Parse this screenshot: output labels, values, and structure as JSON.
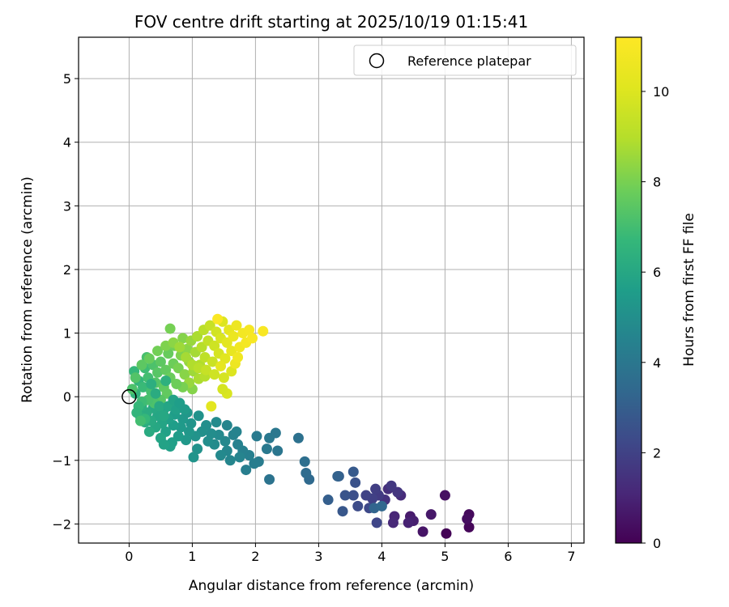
{
  "chart_data": {
    "type": "scatter",
    "title": "FOV centre drift starting at 2025/10/19 01:15:41",
    "xlabel": "Angular distance from reference (arcmin)",
    "ylabel": "Rotation from reference (arcmin)",
    "xlim": [
      -0.8,
      7.2
    ],
    "ylim": [
      -2.3,
      5.65
    ],
    "x_ticks": [
      0,
      1,
      2,
      3,
      4,
      5,
      6,
      7
    ],
    "y_ticks": [
      -2,
      -1,
      0,
      1,
      2,
      3,
      4,
      5
    ],
    "x_tick_labels": [
      "0",
      "1",
      "2",
      "3",
      "4",
      "5",
      "6",
      "7"
    ],
    "y_tick_labels": [
      "−2",
      "−1",
      "0",
      "1",
      "2",
      "3",
      "4",
      "5"
    ],
    "grid": true,
    "legend": {
      "position": "top-right",
      "entries": [
        "Reference platepar"
      ]
    },
    "reference_point": {
      "x": 0.0,
      "y": 0.0,
      "label": "Reference platepar"
    },
    "colorbar": {
      "label": "Hours from first FF file",
      "range": [
        0,
        11.2
      ],
      "ticks": [
        0,
        2,
        4,
        6,
        8,
        10
      ],
      "tick_labels": [
        "0",
        "2",
        "4",
        "6",
        "8",
        "10"
      ],
      "colormap": "viridis"
    },
    "points": [
      [
        5.02,
        -2.15,
        0.05
      ],
      [
        5.38,
        -2.05,
        0.15
      ],
      [
        5.38,
        -1.85,
        0.25
      ],
      [
        5.35,
        -1.92,
        0.35
      ],
      [
        5.0,
        -1.55,
        0.45
      ],
      [
        4.65,
        -2.12,
        0.55
      ],
      [
        4.78,
        -1.85,
        0.65
      ],
      [
        4.45,
        -1.88,
        0.75
      ],
      [
        4.5,
        -1.95,
        0.85
      ],
      [
        4.42,
        -1.98,
        0.95
      ],
      [
        4.2,
        -1.88,
        1.05
      ],
      [
        4.18,
        -1.98,
        1.15
      ],
      [
        4.3,
        -1.55,
        1.25
      ],
      [
        4.1,
        -1.45,
        1.35
      ],
      [
        4.05,
        -1.62,
        1.45
      ],
      [
        4.25,
        -1.5,
        1.55
      ],
      [
        4.15,
        -1.4,
        1.65
      ],
      [
        3.95,
        -1.55,
        1.75
      ],
      [
        3.9,
        -1.45,
        1.85
      ],
      [
        3.85,
        -1.6,
        1.95
      ],
      [
        3.75,
        -1.55,
        2.05
      ],
      [
        3.92,
        -1.98,
        2.15
      ],
      [
        3.8,
        -1.75,
        2.25
      ],
      [
        3.62,
        -1.72,
        2.35
      ],
      [
        3.55,
        -1.55,
        2.45
      ],
      [
        3.58,
        -1.35,
        2.55
      ],
      [
        3.42,
        -1.55,
        2.65
      ],
      [
        3.38,
        -1.8,
        2.75
      ],
      [
        3.55,
        -1.18,
        2.85
      ],
      [
        3.32,
        -1.25,
        2.95
      ],
      [
        3.15,
        -1.62,
        3.05
      ],
      [
        3.3,
        -1.25,
        3.15
      ],
      [
        3.88,
        -1.75,
        3.25
      ],
      [
        4.0,
        -1.72,
        3.35
      ],
      [
        2.85,
        -1.3,
        3.45
      ],
      [
        2.8,
        -1.2,
        3.55
      ],
      [
        2.78,
        -1.02,
        3.65
      ],
      [
        2.68,
        -0.65,
        3.75
      ],
      [
        2.22,
        -1.3,
        3.85
      ],
      [
        2.35,
        -0.85,
        3.95
      ],
      [
        2.32,
        -0.57,
        4.0
      ],
      [
        2.22,
        -0.65,
        4.05
      ],
      [
        2.18,
        -0.82,
        4.1
      ],
      [
        2.02,
        -0.62,
        4.15
      ],
      [
        2.05,
        -1.02,
        4.2
      ],
      [
        1.98,
        -1.05,
        4.25
      ],
      [
        1.85,
        -1.15,
        4.3
      ],
      [
        1.9,
        -0.92,
        4.35
      ],
      [
        1.8,
        -0.85,
        4.4
      ],
      [
        1.72,
        -0.75,
        4.45
      ],
      [
        1.65,
        -0.6,
        4.5
      ],
      [
        1.75,
        -0.95,
        4.55
      ],
      [
        1.6,
        -1.0,
        4.6
      ],
      [
        1.55,
        -0.85,
        4.65
      ],
      [
        1.52,
        -0.7,
        4.7
      ],
      [
        1.45,
        -0.92,
        4.75
      ],
      [
        1.42,
        -0.6,
        4.8
      ],
      [
        1.35,
        -0.75,
        4.85
      ],
      [
        1.3,
        -0.58,
        4.9
      ],
      [
        1.25,
        -0.7,
        4.95
      ],
      [
        1.22,
        -0.45,
        5.0
      ],
      [
        1.15,
        -0.55,
        5.05
      ],
      [
        1.08,
        -0.82,
        5.1
      ],
      [
        1.05,
        -0.62,
        5.15
      ],
      [
        1.02,
        -0.95,
        5.2
      ],
      [
        0.98,
        -0.42,
        5.25
      ],
      [
        0.95,
        -0.55,
        5.3
      ],
      [
        0.9,
        -0.68,
        5.35
      ],
      [
        0.85,
        -0.35,
        5.4
      ],
      [
        0.82,
        -0.48,
        5.45
      ],
      [
        0.78,
        -0.62,
        5.5
      ],
      [
        0.72,
        -0.28,
        5.55
      ],
      [
        0.7,
        -0.45,
        5.6
      ],
      [
        0.68,
        -0.72,
        5.65
      ],
      [
        0.62,
        -0.35,
        5.7
      ],
      [
        0.58,
        -0.55,
        5.75
      ],
      [
        0.55,
        -0.2,
        5.8
      ],
      [
        0.52,
        -0.42,
        5.85
      ],
      [
        0.5,
        -0.65,
        5.9
      ],
      [
        0.45,
        -0.3,
        5.95
      ],
      [
        0.42,
        -0.48,
        6.0
      ],
      [
        0.38,
        -0.18,
        6.05
      ],
      [
        0.35,
        -0.38,
        6.1
      ],
      [
        0.32,
        -0.55,
        6.15
      ],
      [
        0.28,
        -0.25,
        6.2
      ],
      [
        0.25,
        -0.4,
        6.25
      ],
      [
        0.2,
        -0.15,
        6.3
      ],
      [
        0.18,
        -0.32,
        6.35
      ],
      [
        1.55,
        -0.45,
        4.6
      ],
      [
        1.7,
        -0.55,
        4.5
      ],
      [
        1.38,
        -0.4,
        4.85
      ],
      [
        0.65,
        -0.78,
        5.7
      ],
      [
        0.55,
        -0.75,
        5.8
      ],
      [
        1.1,
        -0.3,
        5.1
      ],
      [
        0.92,
        -0.25,
        5.3
      ],
      [
        0.1,
        0.05,
        6.5
      ],
      [
        0.15,
        0.25,
        6.6
      ],
      [
        0.08,
        0.4,
        6.7
      ],
      [
        0.22,
        0.15,
        6.8
      ],
      [
        0.25,
        0.45,
        6.9
      ],
      [
        0.3,
        0.3,
        7.0
      ],
      [
        0.35,
        0.08,
        7.05
      ],
      [
        0.28,
        0.62,
        7.1
      ],
      [
        0.38,
        0.5,
        7.2
      ],
      [
        0.42,
        0.22,
        7.3
      ],
      [
        0.45,
        0.38,
        7.4
      ],
      [
        0.5,
        0.55,
        7.5
      ],
      [
        0.55,
        0.15,
        7.55
      ],
      [
        0.58,
        0.42,
        7.6
      ],
      [
        0.62,
        0.68,
        7.7
      ],
      [
        0.65,
        0.3,
        7.75
      ],
      [
        0.7,
        0.52,
        7.8
      ],
      [
        0.72,
        0.8,
        7.9
      ],
      [
        0.65,
        1.07,
        7.95
      ],
      [
        0.78,
        0.45,
        8.0
      ],
      [
        0.82,
        0.65,
        8.1
      ],
      [
        0.85,
        0.92,
        8.2
      ],
      [
        0.88,
        0.35,
        8.25
      ],
      [
        0.92,
        0.75,
        8.3
      ],
      [
        0.95,
        0.55,
        8.4
      ],
      [
        0.98,
        0.88,
        8.5
      ],
      [
        1.02,
        0.4,
        8.6
      ],
      [
        1.05,
        0.7,
        8.7
      ],
      [
        1.08,
        0.95,
        8.8
      ],
      [
        1.12,
        0.5,
        8.9
      ],
      [
        1.15,
        0.78,
        9.0
      ],
      [
        1.18,
        1.05,
        9.1
      ],
      [
        1.2,
        0.62,
        9.2
      ],
      [
        1.25,
        0.88,
        9.3
      ],
      [
        1.28,
        1.12,
        9.4
      ],
      [
        1.32,
        0.55,
        9.5
      ],
      [
        1.35,
        0.8,
        9.6
      ],
      [
        1.38,
        1.02,
        9.7
      ],
      [
        1.42,
        0.68,
        9.8
      ],
      [
        1.45,
        0.92,
        9.9
      ],
      [
        1.48,
        1.18,
        10.0
      ],
      [
        1.52,
        0.6,
        10.1
      ],
      [
        1.55,
        0.85,
        10.2
      ],
      [
        1.58,
        1.05,
        10.3
      ],
      [
        1.62,
        0.72,
        10.4
      ],
      [
        1.65,
        0.95,
        10.5
      ],
      [
        1.7,
        1.12,
        10.6
      ],
      [
        1.75,
        0.78,
        10.7
      ],
      [
        1.8,
        1.0,
        10.8
      ],
      [
        1.85,
        0.85,
        10.85
      ],
      [
        1.9,
        1.05,
        10.9
      ],
      [
        2.12,
        1.03,
        11.0
      ],
      [
        1.4,
        1.22,
        11.1
      ],
      [
        1.3,
        -0.15,
        10.2
      ],
      [
        1.0,
        0.12,
        8.2
      ],
      [
        0.95,
        0.22,
        8.5
      ],
      [
        1.1,
        0.28,
        8.8
      ],
      [
        0.85,
        0.15,
        8.0
      ],
      [
        1.2,
        0.32,
        9.0
      ],
      [
        0.75,
        0.2,
        7.8
      ],
      [
        0.6,
        0.05,
        7.6
      ],
      [
        0.5,
        -0.05,
        7.4
      ],
      [
        0.4,
        -0.1,
        7.2
      ],
      [
        0.3,
        -0.05,
        7.1
      ],
      [
        0.2,
        -0.08,
        6.9
      ],
      [
        0.15,
        -0.15,
        6.7
      ],
      [
        0.12,
        -0.25,
        6.6
      ],
      [
        0.25,
        -0.35,
        6.7
      ],
      [
        0.18,
        -0.38,
        7.0
      ],
      [
        0.05,
        0.12,
        7.2
      ],
      [
        0.1,
        0.3,
        7.3
      ],
      [
        0.2,
        0.5,
        7.5
      ],
      [
        0.32,
        0.6,
        7.7
      ],
      [
        0.45,
        0.72,
        7.9
      ],
      [
        0.58,
        0.8,
        8.1
      ],
      [
        0.7,
        0.85,
        8.3
      ],
      [
        0.8,
        0.78,
        8.6
      ],
      [
        0.9,
        0.62,
        8.7
      ],
      [
        1.0,
        0.5,
        8.9
      ],
      [
        1.1,
        0.45,
        9.1
      ],
      [
        1.22,
        0.42,
        9.4
      ],
      [
        1.35,
        0.35,
        9.6
      ],
      [
        1.5,
        0.3,
        9.8
      ],
      [
        1.62,
        0.4,
        10.0
      ],
      [
        1.45,
        0.48,
        10.3
      ],
      [
        1.55,
        0.05,
        9.9
      ],
      [
        1.48,
        0.12,
        9.8
      ],
      [
        1.68,
        0.52,
        10.6
      ],
      [
        1.72,
        0.62,
        10.7
      ],
      [
        1.95,
        0.92,
        10.95
      ],
      [
        0.35,
        0.2,
        6.3
      ],
      [
        0.42,
        0.05,
        6.2
      ],
      [
        0.48,
        -0.15,
        6.1
      ],
      [
        0.55,
        -0.3,
        6.0
      ],
      [
        0.62,
        -0.15,
        5.9
      ],
      [
        0.7,
        -0.05,
        5.8
      ],
      [
        0.75,
        -0.2,
        5.7
      ],
      [
        0.8,
        -0.1,
        5.6
      ],
      [
        0.88,
        -0.2,
        5.5
      ],
      [
        0.58,
        0.25,
        6.4
      ]
    ]
  }
}
